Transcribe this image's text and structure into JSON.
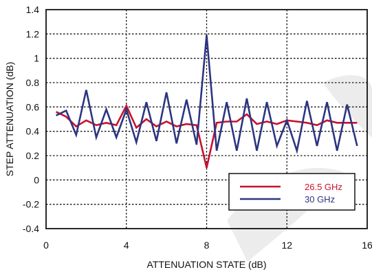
{
  "chart_data": {
    "type": "line",
    "xlabel": "ATTENUATION STATE (dB)",
    "ylabel": "STEP ATTENUATION (dB)",
    "xlim": [
      0,
      16
    ],
    "ylim": [
      -0.4,
      1.4
    ],
    "x_ticks": [
      "0",
      "4",
      "8",
      "12",
      "16"
    ],
    "y_ticks": [
      "-0.4",
      "-0.2",
      "0",
      "0.2",
      "0.4",
      "0.6",
      "0.8",
      "1",
      "1.2",
      "1.4"
    ],
    "x_tick_values": [
      0,
      4,
      8,
      12,
      16
    ],
    "y_tick_values": [
      -0.4,
      -0.2,
      0,
      0.2,
      0.4,
      0.6,
      0.8,
      1,
      1.2,
      1.4
    ],
    "grid": true,
    "legend_position": "bottom-right",
    "series": [
      {
        "name": "26.5 GHz",
        "color": "#c8102e",
        "x": [
          0.5,
          1.0,
          1.5,
          2.0,
          2.5,
          3.0,
          3.5,
          4.0,
          4.5,
          5.0,
          5.5,
          6.0,
          6.5,
          7.0,
          7.5,
          8.0,
          8.5,
          9.0,
          9.5,
          10.0,
          10.5,
          11.0,
          11.5,
          12.0,
          12.5,
          13.0,
          13.5,
          14.0,
          14.5,
          15.0,
          15.5
        ],
        "values": [
          0.56,
          0.52,
          0.44,
          0.49,
          0.45,
          0.47,
          0.45,
          0.61,
          0.43,
          0.5,
          0.44,
          0.48,
          0.44,
          0.46,
          0.45,
          0.1,
          0.47,
          0.48,
          0.48,
          0.54,
          0.46,
          0.48,
          0.46,
          0.49,
          0.48,
          0.47,
          0.45,
          0.49,
          0.47,
          0.47,
          0.47
        ]
      },
      {
        "name": "30 GHz",
        "color": "#2b3580",
        "x": [
          0.5,
          1.0,
          1.5,
          2.0,
          2.5,
          3.0,
          3.5,
          4.0,
          4.5,
          5.0,
          5.5,
          6.0,
          6.5,
          7.0,
          7.5,
          8.0,
          8.5,
          9.0,
          9.5,
          10.0,
          10.5,
          11.0,
          11.5,
          12.0,
          12.5,
          13.0,
          13.5,
          14.0,
          14.5,
          15.0,
          15.5
        ],
        "values": [
          0.53,
          0.57,
          0.37,
          0.74,
          0.35,
          0.58,
          0.35,
          0.58,
          0.31,
          0.64,
          0.32,
          0.72,
          0.3,
          0.66,
          0.29,
          1.19,
          0.24,
          0.64,
          0.24,
          0.67,
          0.24,
          0.64,
          0.28,
          0.49,
          0.24,
          0.65,
          0.28,
          0.64,
          0.24,
          0.62,
          0.28
        ]
      }
    ]
  }
}
